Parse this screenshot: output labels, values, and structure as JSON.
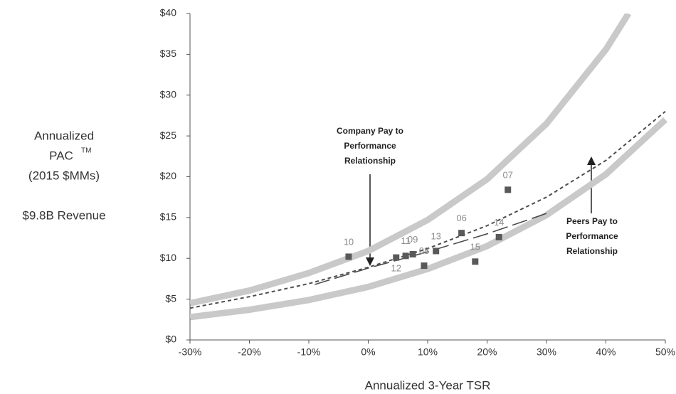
{
  "chart_data": {
    "type": "scatter",
    "y_label_lines": [
      "Annualized",
      "PAC",
      "(2015 $MMs)"
    ],
    "y_label_superscript": "TM",
    "subtitle": "$9.8B Revenue",
    "x_label": "Annualized 3-Year TSR",
    "xlim": [
      -30,
      50
    ],
    "xticks": [
      {
        "value": -30,
        "label": "-30%"
      },
      {
        "value": -20,
        "label": "-20%"
      },
      {
        "value": -10,
        "label": "-10%"
      },
      {
        "value": 0,
        "label": "0%"
      },
      {
        "value": 10,
        "label": "10%"
      },
      {
        "value": 20,
        "label": "20%"
      },
      {
        "value": 30,
        "label": "30%"
      },
      {
        "value": 40,
        "label": "40%"
      },
      {
        "value": 50,
        "label": "50%"
      }
    ],
    "ylim": [
      0,
      40
    ],
    "yticks": [
      {
        "value": 0,
        "label": "$0"
      },
      {
        "value": 5,
        "label": "$5"
      },
      {
        "value": 10,
        "label": "$10"
      },
      {
        "value": 15,
        "label": "$15"
      },
      {
        "value": 20,
        "label": "$20"
      },
      {
        "value": 25,
        "label": "$25"
      },
      {
        "value": 30,
        "label": "$30"
      },
      {
        "value": 35,
        "label": "$35"
      },
      {
        "value": 40,
        "label": "$40"
      }
    ],
    "grid": false,
    "points": {
      "labels": [
        "10",
        "12",
        "11",
        "09",
        "13",
        "08",
        "06",
        "15",
        "07",
        "14"
      ],
      "x": [
        -3.3,
        4.7,
        6.3,
        7.5,
        11.4,
        9.4,
        15.7,
        18.0,
        23.5,
        22.0
      ],
      "values": [
        10.2,
        10.1,
        10.3,
        10.5,
        10.9,
        9.1,
        13.1,
        9.6,
        18.4,
        12.6
      ],
      "color": "#595959",
      "label_color": "#8c8c8c"
    },
    "series": [
      {
        "style": "band",
        "color": "#c9c9c9",
        "x": [
          -30,
          -20,
          -10,
          0,
          10,
          20,
          30,
          40,
          43.8
        ],
        "values": [
          4.5,
          6.05,
          8.2,
          10.9,
          14.7,
          19.7,
          26.5,
          35.6,
          40
        ]
      },
      {
        "style": "band",
        "color": "#c9c9c9",
        "x": [
          -30,
          -20,
          -10,
          0,
          10,
          20,
          30,
          40,
          50
        ],
        "values": [
          2.8,
          3.7,
          4.9,
          6.5,
          8.7,
          11.5,
          15.3,
          20.3,
          27.0
        ]
      },
      {
        "style": "dashed",
        "color": "#4d4d4d",
        "x": [
          -30,
          -20,
          -10,
          0,
          10,
          20,
          30,
          40,
          50
        ],
        "values": [
          3.9,
          5.3,
          6.9,
          8.9,
          11.2,
          14.0,
          17.5,
          22.0,
          28.0
        ]
      },
      {
        "style": "long-dashed",
        "color": "#4d4d4d",
        "x": [
          -9,
          0,
          10,
          20,
          30
        ],
        "values": [
          6.8,
          8.8,
          10.8,
          13.0,
          15.5
        ]
      }
    ],
    "annotations": [
      {
        "lines": [
          "Company Pay to",
          "Performance",
          "Relationship"
        ]
      },
      {
        "lines": [
          "Peers Pay to",
          "Performance",
          "Relationship"
        ]
      }
    ]
  }
}
